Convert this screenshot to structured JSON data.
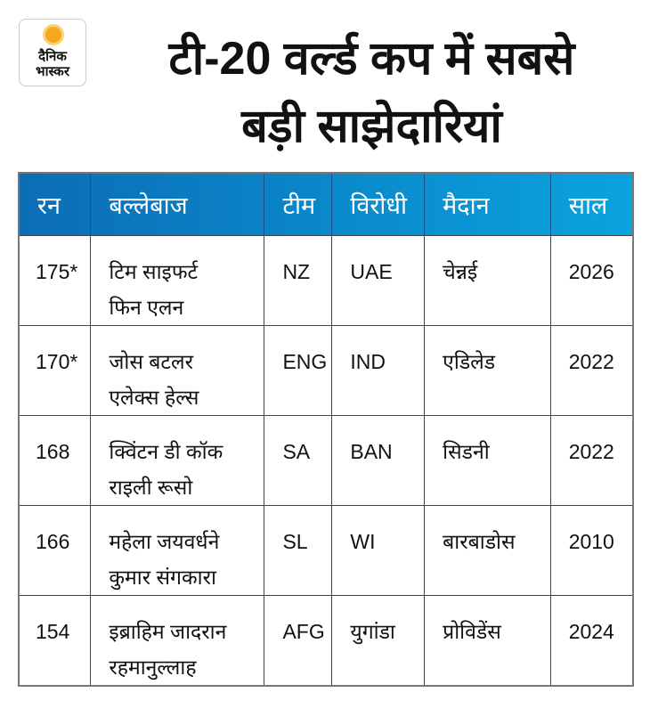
{
  "logo": {
    "line1": "दैनिक",
    "line2": "भास्कर"
  },
  "title": {
    "line1": "टी-20 वर्ल्ड कप में सबसे",
    "line2": "बड़ी साझेदारियां"
  },
  "table": {
    "headers": [
      "रन",
      "बल्लेबाज",
      "टीम",
      "विरोधी",
      "मैदान",
      "साल"
    ],
    "rows": [
      {
        "runs": "175*",
        "batter1": "टिम साइफर्ट",
        "batter2": "फिन एलन",
        "team": "NZ",
        "opponent": "UAE",
        "venue": "चेन्नई",
        "year": "2026"
      },
      {
        "runs": "170*",
        "batter1": "जोस बटलर",
        "batter2": "एलेक्स हेल्स",
        "team": "ENG",
        "opponent": "IND",
        "venue": "एडिलेड",
        "year": "2022"
      },
      {
        "runs": "168",
        "batter1": "क्विंटन डी कॉक",
        "batter2": "राइली रूसो",
        "team": "SA",
        "opponent": "BAN",
        "venue": "सिडनी",
        "year": "2022"
      },
      {
        "runs": "166",
        "batter1": "महेला जयवर्धने",
        "batter2": "कुमार संगकारा",
        "team": "SL",
        "opponent": "WI",
        "venue": "बारबाडोस",
        "year": "2010"
      },
      {
        "runs": "154",
        "batter1": "इब्राहिम जादरान",
        "batter2": "रहमानुल्लाह",
        "team": "AFG",
        "opponent": "युगांडा",
        "venue": "प्रोविडेंस",
        "year": "2024"
      }
    ]
  }
}
